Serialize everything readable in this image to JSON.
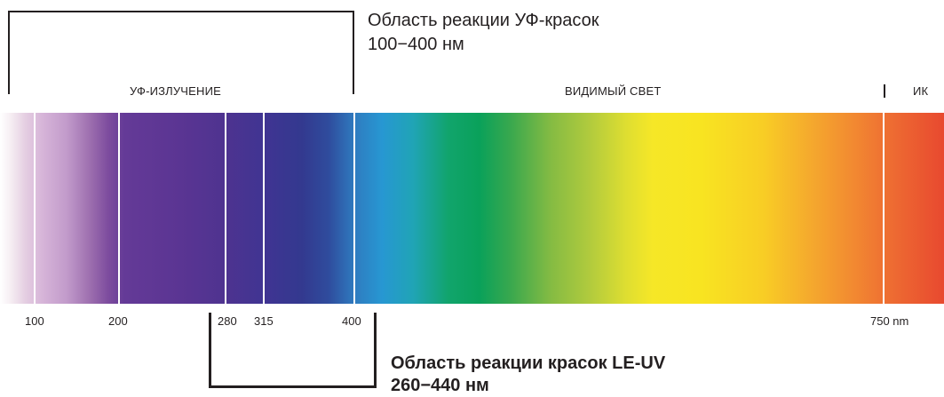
{
  "uv_dye_region": {
    "title": "Область реакции УФ-красок",
    "range": "100−400 нм"
  },
  "bands": {
    "uv": "УФ-ИЗЛУЧЕНИЕ",
    "visible": "ВИДИМЫЙ СВЕТ",
    "ir": "ИК"
  },
  "ticks": {
    "t100": "100",
    "t200": "200",
    "t280": "280",
    "t315": "315",
    "t400": "400",
    "t750": "750 nm"
  },
  "le_uv_region": {
    "title": "Область реакции красок LE-UV",
    "range": "260−440 нм"
  }
}
